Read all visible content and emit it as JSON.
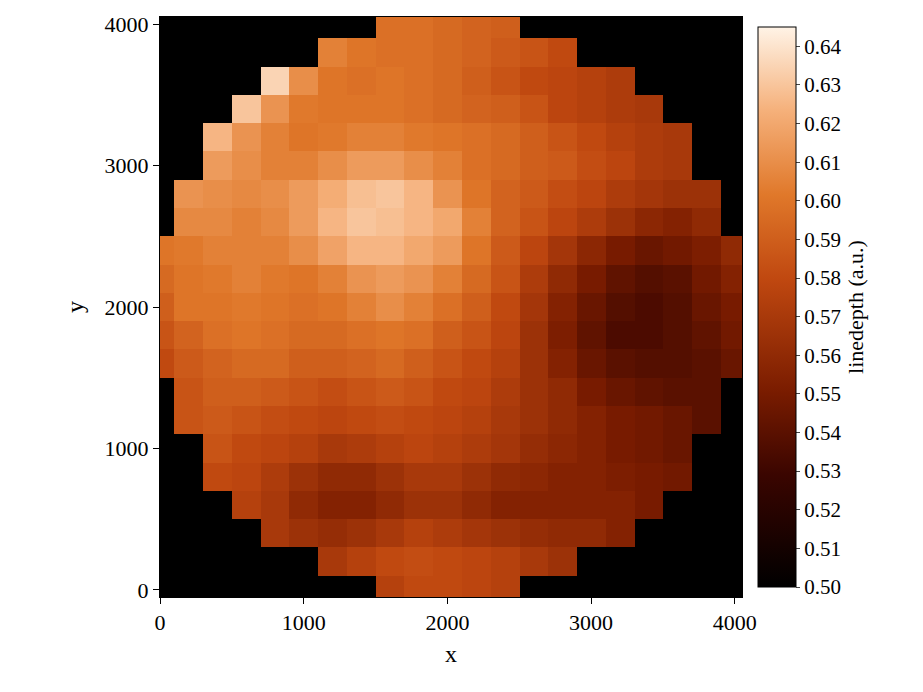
{
  "chart_data": {
    "type": "heatmap",
    "x_label": "x",
    "y_label": "y",
    "xlim": [
      0,
      4050
    ],
    "ylim": [
      -50,
      4050
    ],
    "xticks": [
      0,
      1000,
      2000,
      3000,
      4000
    ],
    "yticks": [
      0,
      1000,
      2000,
      3000,
      4000
    ],
    "grid": false,
    "x": [
      0,
      200,
      400,
      600,
      800,
      1000,
      1200,
      1400,
      1600,
      1800,
      2000,
      2200,
      2400,
      2600,
      2800,
      3000,
      3200,
      3400,
      3600,
      3800,
      4000
    ],
    "y": [
      0,
      200,
      400,
      600,
      800,
      1000,
      1200,
      1400,
      1600,
      1800,
      2000,
      2200,
      2400,
      2600,
      2800,
      3000,
      3200,
      3400,
      3600,
      3800,
      4000
    ],
    "cells": [
      [
        null,
        null,
        null,
        null,
        null,
        null,
        null,
        null,
        0.575,
        0.58,
        0.58,
        0.578,
        0.575,
        null,
        null,
        null,
        null,
        null,
        null,
        null,
        null
      ],
      [
        null,
        null,
        null,
        null,
        null,
        null,
        0.57,
        0.575,
        0.58,
        0.582,
        0.58,
        0.578,
        0.575,
        0.57,
        0.565,
        null,
        null,
        null,
        null,
        null,
        null
      ],
      [
        null,
        null,
        null,
        null,
        0.57,
        0.565,
        0.562,
        0.565,
        0.57,
        0.575,
        0.572,
        0.568,
        0.565,
        0.562,
        0.56,
        0.56,
        0.555,
        null,
        null,
        null,
        null
      ],
      [
        null,
        null,
        null,
        0.575,
        0.57,
        0.56,
        0.555,
        0.555,
        0.56,
        0.565,
        0.565,
        0.56,
        0.555,
        0.555,
        0.555,
        0.555,
        0.555,
        0.55,
        null,
        null,
        null
      ],
      [
        null,
        null,
        0.58,
        0.578,
        0.572,
        0.565,
        0.56,
        0.56,
        0.565,
        0.57,
        0.57,
        0.565,
        0.56,
        0.558,
        0.555,
        0.555,
        0.552,
        0.55,
        0.548,
        null,
        null
      ],
      [
        null,
        null,
        0.585,
        0.58,
        0.578,
        0.575,
        0.57,
        0.572,
        0.575,
        0.578,
        0.575,
        0.572,
        0.568,
        0.562,
        0.558,
        0.555,
        0.55,
        0.548,
        0.545,
        null,
        null
      ],
      [
        null,
        0.585,
        0.588,
        0.585,
        0.582,
        0.58,
        0.578,
        0.58,
        0.582,
        0.58,
        0.578,
        0.575,
        0.57,
        0.565,
        0.56,
        0.555,
        0.55,
        0.548,
        0.545,
        0.54,
        null
      ],
      [
        null,
        0.585,
        0.59,
        0.59,
        0.588,
        0.585,
        0.582,
        0.585,
        0.588,
        0.585,
        0.58,
        0.578,
        0.572,
        0.565,
        0.56,
        0.55,
        0.545,
        0.542,
        0.54,
        0.54,
        null
      ],
      [
        0.58,
        0.588,
        0.592,
        0.595,
        0.595,
        0.59,
        0.59,
        0.592,
        0.595,
        0.59,
        0.585,
        0.58,
        0.575,
        0.565,
        0.555,
        0.545,
        0.54,
        0.538,
        0.538,
        0.54,
        0.545
      ],
      [
        0.585,
        0.592,
        0.598,
        0.6,
        0.598,
        0.595,
        0.595,
        0.598,
        0.6,
        0.598,
        0.59,
        0.585,
        0.578,
        0.565,
        0.552,
        0.542,
        0.535,
        0.535,
        0.538,
        0.542,
        0.548
      ],
      [
        0.59,
        0.6,
        0.6,
        0.602,
        0.6,
        0.598,
        0.6,
        0.605,
        0.61,
        0.605,
        0.598,
        0.59,
        0.58,
        0.568,
        0.555,
        0.545,
        0.538,
        0.535,
        0.538,
        0.545,
        0.55
      ],
      [
        0.595,
        0.6,
        0.602,
        0.605,
        0.602,
        0.6,
        0.605,
        0.612,
        0.615,
        0.612,
        0.605,
        0.595,
        0.585,
        0.572,
        0.56,
        0.55,
        0.542,
        0.538,
        0.54,
        0.548,
        0.555
      ],
      [
        0.6,
        0.602,
        0.605,
        0.605,
        0.605,
        0.61,
        0.618,
        0.625,
        0.625,
        0.62,
        0.615,
        0.6,
        0.588,
        0.578,
        0.568,
        0.558,
        0.55,
        0.545,
        0.548,
        0.552,
        0.56
      ],
      [
        null,
        0.608,
        0.608,
        0.605,
        0.608,
        0.615,
        0.625,
        0.63,
        0.628,
        0.625,
        0.62,
        0.605,
        0.592,
        0.585,
        0.578,
        0.572,
        0.565,
        0.558,
        0.555,
        0.56,
        null
      ],
      [
        null,
        0.612,
        0.61,
        0.608,
        0.61,
        0.615,
        0.622,
        0.628,
        0.63,
        0.625,
        0.612,
        0.6,
        0.592,
        0.588,
        0.582,
        0.578,
        0.572,
        0.568,
        0.565,
        0.565,
        null
      ],
      [
        null,
        null,
        0.615,
        0.61,
        0.605,
        0.605,
        0.61,
        0.615,
        0.615,
        0.61,
        0.605,
        0.598,
        0.595,
        0.59,
        0.588,
        0.582,
        0.578,
        0.572,
        0.57,
        null,
        null
      ],
      [
        null,
        null,
        0.625,
        0.612,
        0.605,
        0.6,
        0.602,
        0.605,
        0.605,
        0.602,
        0.6,
        0.598,
        0.595,
        0.59,
        0.585,
        0.58,
        0.575,
        0.572,
        0.57,
        null,
        null
      ],
      [
        null,
        null,
        null,
        0.63,
        0.612,
        0.602,
        0.6,
        0.6,
        0.6,
        0.598,
        0.595,
        0.592,
        0.59,
        0.585,
        0.578,
        0.575,
        0.572,
        0.57,
        null,
        null,
        null
      ],
      [
        null,
        null,
        null,
        null,
        0.635,
        0.61,
        0.6,
        0.598,
        0.6,
        0.598,
        0.595,
        0.59,
        0.585,
        0.58,
        0.578,
        0.575,
        0.572,
        null,
        null,
        null,
        null
      ],
      [
        null,
        null,
        null,
        null,
        null,
        null,
        0.605,
        0.6,
        0.598,
        0.598,
        0.595,
        0.592,
        0.588,
        0.585,
        0.58,
        null,
        null,
        null,
        null,
        null,
        null
      ],
      [
        null,
        null,
        null,
        null,
        null,
        null,
        null,
        null,
        0.598,
        0.598,
        0.595,
        0.592,
        0.59,
        null,
        null,
        null,
        null,
        null,
        null,
        null,
        null
      ]
    ],
    "colorbar": {
      "title": "linedepth (a.u.)",
      "range": [
        0.5,
        0.645
      ],
      "ticks": [
        {
          "value": 0.5,
          "label": "0.50"
        },
        0.51,
        0.52,
        0.53,
        0.54,
        0.55,
        0.56,
        0.57,
        0.58,
        0.59,
        {
          "value": 0.6,
          "label": "0.60"
        },
        0.61,
        0.62,
        0.63,
        0.64
      ]
    }
  }
}
